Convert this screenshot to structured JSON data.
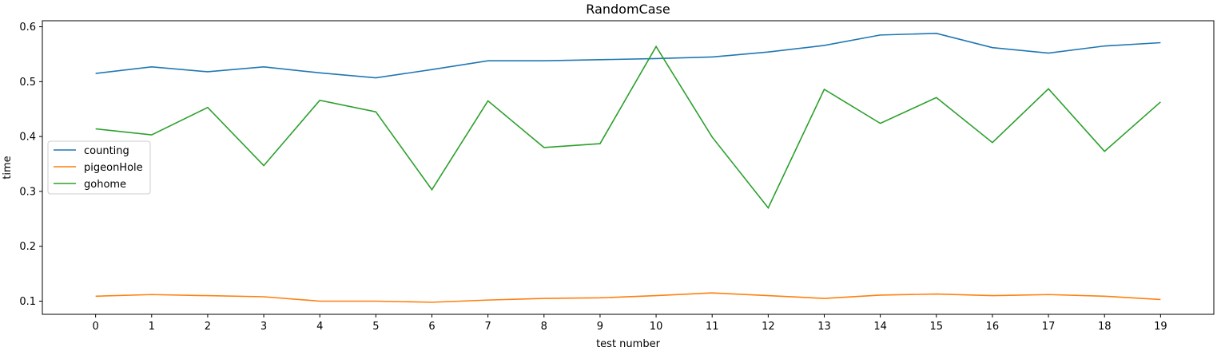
{
  "chart_data": {
    "type": "line",
    "title": "RandomCase",
    "xlabel": "test number",
    "ylabel": "time",
    "x": [
      0,
      1,
      2,
      3,
      4,
      5,
      6,
      7,
      8,
      9,
      10,
      11,
      12,
      13,
      14,
      15,
      16,
      17,
      18,
      19
    ],
    "xticks": [
      "0",
      "1",
      "2",
      "3",
      "4",
      "5",
      "6",
      "7",
      "8",
      "9",
      "10",
      "11",
      "12",
      "13",
      "14",
      "15",
      "16",
      "17",
      "18",
      "19"
    ],
    "yticks": [
      0.1,
      0.2,
      0.3,
      0.4,
      0.5,
      0.6
    ],
    "ytick_labels": [
      "0.1",
      "0.2",
      "0.3",
      "0.4",
      "0.5",
      "0.6"
    ],
    "xlim": [
      -0.95,
      19.95
    ],
    "ylim": [
      0.076,
      0.611
    ],
    "grid": false,
    "legend_position": "center-left",
    "series": [
      {
        "name": "counting",
        "color": "#1f77b4",
        "values": [
          0.515,
          0.527,
          0.518,
          0.527,
          0.516,
          0.507,
          0.522,
          0.538,
          0.538,
          0.54,
          0.542,
          0.545,
          0.554,
          0.566,
          0.585,
          0.588,
          0.562,
          0.552,
          0.565,
          0.571
        ]
      },
      {
        "name": "pigeonHole",
        "color": "#ff7f0e",
        "values": [
          0.109,
          0.112,
          0.11,
          0.108,
          0.1,
          0.1,
          0.098,
          0.102,
          0.105,
          0.106,
          0.11,
          0.115,
          0.11,
          0.105,
          0.111,
          0.113,
          0.11,
          0.112,
          0.109,
          0.103
        ]
      },
      {
        "name": "gohome",
        "color": "#2ca02c",
        "values": [
          0.414,
          0.403,
          0.453,
          0.347,
          0.466,
          0.445,
          0.303,
          0.465,
          0.38,
          0.387,
          0.564,
          0.399,
          0.27,
          0.486,
          0.424,
          0.471,
          0.389,
          0.487,
          0.373,
          0.463
        ]
      }
    ]
  }
}
